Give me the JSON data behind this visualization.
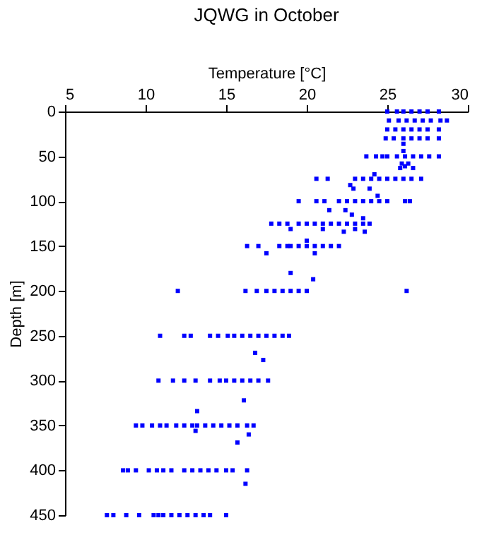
{
  "chart_data": {
    "type": "scatter",
    "title": "JQWG in October",
    "xlabel": "Temperature [°C]",
    "ylabel": "Depth [m]",
    "xlim": [
      5,
      30
    ],
    "xticks": [
      5,
      10,
      15,
      20,
      25,
      30
    ],
    "ylim": [
      450,
      0
    ],
    "yticks": [
      0,
      50,
      100,
      150,
      200,
      250,
      300,
      350,
      400,
      450
    ],
    "grid": false,
    "marker": "square",
    "series": [
      {
        "color": "#0000ff",
        "x": [
          25.0,
          25.6,
          26.0,
          26.5,
          27.0,
          27.5,
          28.2,
          25.1,
          25.7,
          26.2,
          26.7,
          27.2,
          27.7,
          28.3,
          28.7,
          25.0,
          25.5,
          26.0,
          26.5,
          27.0,
          27.5,
          28.2,
          24.9,
          25.4,
          26.0,
          26.5,
          27.0,
          27.5,
          28.2,
          26.0,
          26.0,
          23.7,
          24.3,
          24.7,
          25.0,
          25.6,
          26.1,
          26.6,
          27.1,
          27.6,
          28.2,
          25.9,
          26.3,
          26.1,
          25.8,
          26.6,
          24.2,
          20.6,
          21.3,
          23.0,
          23.5,
          24.0,
          24.5,
          25.0,
          25.5,
          26.0,
          26.5,
          27.1,
          22.7,
          22.9,
          23.9,
          24.4,
          19.5,
          20.6,
          21.1,
          22.0,
          22.5,
          23.0,
          23.5,
          24.0,
          24.5,
          25.0,
          26.1,
          26.4,
          21.4,
          22.4,
          22.8,
          23.5,
          17.8,
          18.3,
          18.8,
          19.5,
          20.0,
          20.5,
          21.0,
          21.5,
          22.0,
          22.5,
          23.0,
          23.5,
          23.9,
          19.0,
          21.0,
          23.0,
          22.3,
          23.6,
          20.0,
          16.3,
          17.0,
          18.3,
          18.8,
          19.0,
          19.5,
          20.0,
          20.5,
          21.0,
          21.5,
          22.0,
          17.5,
          20.5,
          19.0,
          20.4,
          12.0,
          16.2,
          16.9,
          17.5,
          18.0,
          18.5,
          19.0,
          19.5,
          20.0,
          26.2,
          10.9,
          12.4,
          12.8,
          14.0,
          14.5,
          15.1,
          15.5,
          16.0,
          16.5,
          17.0,
          17.5,
          18.0,
          18.5,
          18.9,
          16.8,
          17.3,
          10.8,
          11.7,
          12.4,
          13.1,
          14.0,
          14.6,
          15.0,
          15.5,
          16.0,
          16.5,
          17.0,
          17.6,
          16.1,
          13.2,
          9.4,
          9.8,
          10.4,
          10.9,
          11.3,
          11.9,
          12.4,
          12.9,
          13.2,
          13.7,
          14.2,
          14.7,
          15.2,
          15.7,
          16.3,
          16.7,
          13.1,
          16.4,
          15.7,
          8.6,
          8.9,
          9.4,
          10.2,
          10.7,
          11.1,
          11.6,
          12.4,
          12.9,
          13.4,
          13.9,
          14.4,
          15.0,
          15.4,
          16.3,
          16.2,
          7.6,
          8.0,
          8.8,
          9.6,
          10.5,
          10.8,
          11.1,
          11.6,
          12.1,
          12.6,
          13.1,
          13.6,
          14.0,
          15.0
        ],
        "values": [
          0,
          0,
          0,
          0,
          0,
          0,
          0,
          10,
          10,
          10,
          10,
          10,
          10,
          10,
          10,
          20,
          20,
          20,
          20,
          20,
          20,
          20,
          30,
          30,
          30,
          30,
          30,
          30,
          30,
          36,
          44,
          50,
          50,
          50,
          50,
          50,
          50,
          50,
          50,
          50,
          50,
          58,
          58,
          61,
          63,
          63,
          70,
          75,
          75,
          75,
          75,
          75,
          75,
          75,
          75,
          75,
          75,
          75,
          82,
          86,
          86,
          94,
          100,
          100,
          100,
          100,
          100,
          100,
          100,
          100,
          100,
          100,
          100,
          100,
          110,
          110,
          115,
          119,
          125,
          125,
          125,
          125,
          125,
          125,
          125,
          125,
          125,
          125,
          125,
          125,
          125,
          131,
          131,
          131,
          134,
          134,
          144,
          150,
          150,
          150,
          150,
          150,
          150,
          150,
          150,
          150,
          150,
          150,
          158,
          158,
          180,
          187,
          200,
          200,
          200,
          200,
          200,
          200,
          200,
          200,
          200,
          200,
          250,
          250,
          250,
          250,
          250,
          250,
          250,
          250,
          250,
          250,
          250,
          250,
          250,
          250,
          269,
          277,
          300,
          300,
          300,
          300,
          300,
          300,
          300,
          300,
          300,
          300,
          300,
          300,
          322,
          334,
          350,
          350,
          350,
          350,
          350,
          350,
          350,
          350,
          350,
          350,
          350,
          350,
          350,
          350,
          350,
          350,
          356,
          360,
          369,
          400,
          400,
          400,
          400,
          400,
          400,
          400,
          400,
          400,
          400,
          400,
          400,
          400,
          400,
          400,
          415,
          450,
          450,
          450,
          450,
          450,
          450,
          450,
          450,
          450,
          450,
          450,
          450,
          450,
          450
        ]
      }
    ]
  }
}
